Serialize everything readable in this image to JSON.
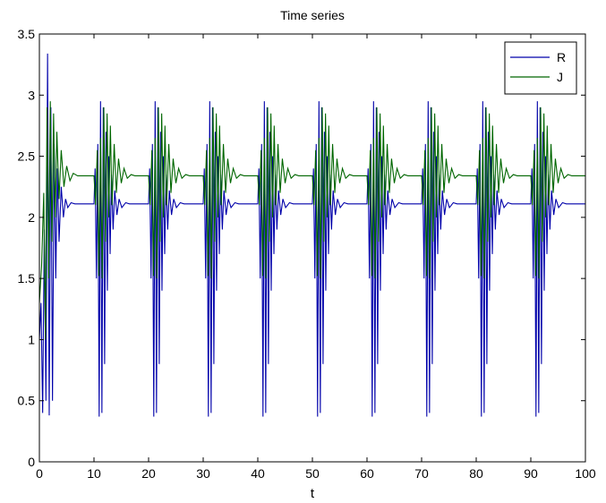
{
  "chart_data": {
    "type": "line",
    "title": "Time series",
    "xlabel": "t",
    "ylabel": "",
    "xlim": [
      0,
      100
    ],
    "ylim": [
      0,
      3.5
    ],
    "xticks": [
      0,
      10,
      20,
      30,
      40,
      50,
      60,
      70,
      80,
      90,
      100
    ],
    "yticks": [
      0,
      0.5,
      1,
      1.5,
      2,
      2.5,
      3,
      3.5
    ],
    "ytick_labels": [
      "0",
      "0.5",
      "1",
      "1.5",
      "2",
      "2.5",
      "3",
      "3.5"
    ],
    "grid": false,
    "legend": "top-right",
    "series": [
      {
        "name": "R",
        "color": "#0000aa",
        "steady": 2.11,
        "first_burst": [
          [
            0,
            1.0
          ],
          [
            0.3,
            1.3
          ],
          [
            0.6,
            0.4
          ],
          [
            0.9,
            1.9
          ],
          [
            1.2,
            0.5
          ],
          [
            1.5,
            3.34
          ],
          [
            1.8,
            0.38
          ],
          [
            2.1,
            2.9
          ],
          [
            2.4,
            0.5
          ],
          [
            2.7,
            2.6
          ],
          [
            3.0,
            1.5
          ],
          [
            3.3,
            2.4
          ],
          [
            3.6,
            1.8
          ],
          [
            4.0,
            2.25
          ],
          [
            4.4,
            2.0
          ],
          [
            4.8,
            2.15
          ],
          [
            5.2,
            2.08
          ],
          [
            5.8,
            2.12
          ],
          [
            6.5,
            2.11
          ],
          [
            10.0,
            2.11
          ]
        ],
        "burst_times": [
          10,
          20,
          30,
          40,
          50,
          60,
          70,
          80,
          90
        ],
        "burst_offsets": [
          [
            0,
            2.11
          ],
          [
            0.2,
            2.4
          ],
          [
            0.45,
            1.5
          ],
          [
            0.7,
            2.6
          ],
          [
            0.95,
            0.37
          ],
          [
            1.2,
            2.95
          ],
          [
            1.45,
            0.4
          ],
          [
            1.7,
            2.9
          ],
          [
            1.95,
            0.8
          ],
          [
            2.2,
            2.7
          ],
          [
            2.45,
            1.4
          ],
          [
            2.7,
            2.5
          ],
          [
            2.95,
            1.7
          ],
          [
            3.2,
            2.35
          ],
          [
            3.5,
            1.9
          ],
          [
            3.8,
            2.22
          ],
          [
            4.2,
            2.02
          ],
          [
            4.6,
            2.15
          ],
          [
            5.1,
            2.08
          ],
          [
            5.8,
            2.12
          ],
          [
            6.5,
            2.11
          ]
        ]
      },
      {
        "name": "J",
        "color": "#006600",
        "steady": 2.34,
        "first_burst": [
          [
            0,
            1.3
          ],
          [
            0.4,
            1.6
          ],
          [
            0.8,
            2.2
          ],
          [
            1.1,
            1.0
          ],
          [
            1.4,
            2.9
          ],
          [
            1.7,
            1.5
          ],
          [
            2.0,
            2.95
          ],
          [
            2.3,
            1.8
          ],
          [
            2.6,
            2.85
          ],
          [
            2.9,
            2.0
          ],
          [
            3.2,
            2.7
          ],
          [
            3.6,
            2.15
          ],
          [
            4.0,
            2.55
          ],
          [
            4.5,
            2.25
          ],
          [
            5.0,
            2.42
          ],
          [
            5.6,
            2.3
          ],
          [
            6.2,
            2.36
          ],
          [
            7.0,
            2.34
          ],
          [
            10.0,
            2.34
          ]
        ],
        "burst_times": [
          10,
          20,
          30,
          40,
          50,
          60,
          70,
          80,
          90
        ],
        "burst_offsets": [
          [
            0,
            2.34
          ],
          [
            0.3,
            2.1
          ],
          [
            0.6,
            2.55
          ],
          [
            0.9,
            1.52
          ],
          [
            1.2,
            2.65
          ],
          [
            1.5,
            1.5
          ],
          [
            1.8,
            2.9
          ],
          [
            2.1,
            1.8
          ],
          [
            2.4,
            2.85
          ],
          [
            2.7,
            2.0
          ],
          [
            3.0,
            2.75
          ],
          [
            3.3,
            2.1
          ],
          [
            3.7,
            2.6
          ],
          [
            4.1,
            2.2
          ],
          [
            4.5,
            2.48
          ],
          [
            5.0,
            2.28
          ],
          [
            5.5,
            2.4
          ],
          [
            6.1,
            2.32
          ],
          [
            6.8,
            2.35
          ],
          [
            7.5,
            2.34
          ]
        ]
      }
    ]
  }
}
